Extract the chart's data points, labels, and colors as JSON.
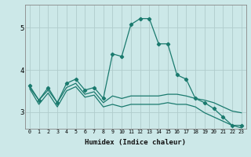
{
  "xlabel": "Humidex (Indice chaleur)",
  "ylabel": "",
  "bg_color": "#cce8e8",
  "grid_color": "#b0cccc",
  "line_color": "#1a7a6e",
  "xlim": [
    -0.5,
    23.5
  ],
  "ylim": [
    2.6,
    5.55
  ],
  "yticks": [
    3,
    4,
    5
  ],
  "xticks": [
    0,
    1,
    2,
    3,
    4,
    5,
    6,
    7,
    8,
    9,
    10,
    11,
    12,
    13,
    14,
    15,
    16,
    17,
    18,
    19,
    20,
    21,
    22,
    23
  ],
  "series1_x": [
    0,
    1,
    2,
    3,
    4,
    5,
    6,
    7,
    8,
    9,
    10,
    11,
    12,
    13,
    14,
    15,
    16,
    17,
    18,
    19,
    20,
    21,
    22,
    23
  ],
  "series1_y": [
    3.62,
    3.28,
    3.58,
    3.22,
    3.68,
    3.78,
    3.52,
    3.58,
    3.32,
    4.38,
    4.32,
    5.08,
    5.22,
    5.22,
    4.62,
    4.62,
    3.88,
    3.78,
    3.32,
    3.22,
    3.08,
    2.88,
    2.68,
    2.68
  ],
  "series2_x": [
    0,
    1,
    2,
    3,
    4,
    5,
    6,
    7,
    8,
    9,
    10,
    11,
    12,
    13,
    14,
    15,
    16,
    17,
    18,
    19,
    20,
    21,
    22,
    23
  ],
  "series2_y": [
    3.58,
    3.28,
    3.52,
    3.22,
    3.58,
    3.68,
    3.42,
    3.48,
    3.22,
    3.38,
    3.32,
    3.38,
    3.38,
    3.38,
    3.38,
    3.42,
    3.42,
    3.38,
    3.32,
    3.28,
    3.22,
    3.12,
    3.02,
    2.98
  ],
  "series3_x": [
    0,
    1,
    2,
    3,
    4,
    5,
    6,
    7,
    8,
    9,
    10,
    11,
    12,
    13,
    14,
    15,
    16,
    17,
    18,
    19,
    20,
    21,
    22,
    23
  ],
  "series3_y": [
    3.55,
    3.18,
    3.45,
    3.12,
    3.5,
    3.6,
    3.35,
    3.4,
    3.12,
    3.18,
    3.12,
    3.18,
    3.18,
    3.18,
    3.18,
    3.22,
    3.18,
    3.18,
    3.12,
    2.98,
    2.88,
    2.78,
    2.68,
    2.62
  ]
}
